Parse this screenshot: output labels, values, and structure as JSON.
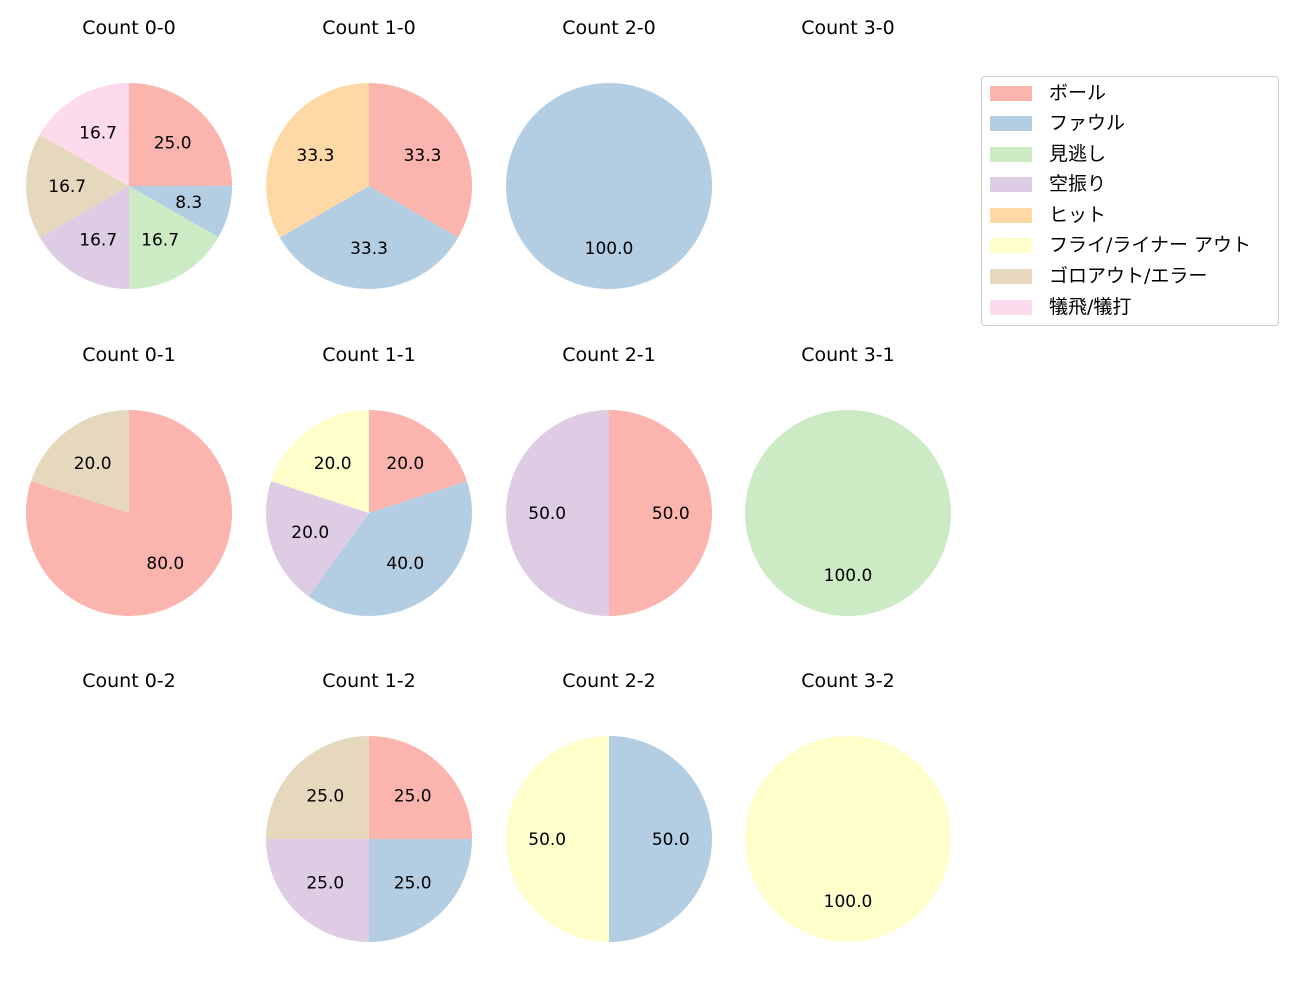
{
  "legend": {
    "items": [
      {
        "label": "ボール",
        "color": "#fbb4ae"
      },
      {
        "label": "ファウル",
        "color": "#b3cde3"
      },
      {
        "label": "見逃し",
        "color": "#ccebc5"
      },
      {
        "label": "空振り",
        "color": "#decbe4"
      },
      {
        "label": "ヒット",
        "color": "#fed9a6"
      },
      {
        "label": "フライ/ライナー アウト",
        "color": "#ffffcc"
      },
      {
        "label": "ゴロアウト/エラー",
        "color": "#e5d8bd"
      },
      {
        "label": "犠飛/犠打",
        "color": "#fddaec"
      }
    ]
  },
  "chart_data": [
    {
      "type": "pie",
      "title": "Count 0-0",
      "categories": [
        "ボール",
        "ファウル",
        "見逃し",
        "空振り",
        "ゴロアウト/エラー",
        "犠飛/犠打"
      ],
      "values": [
        25.0,
        8.3,
        16.7,
        16.7,
        16.7,
        16.7
      ]
    },
    {
      "type": "pie",
      "title": "Count 1-0",
      "categories": [
        "ボール",
        "ファウル",
        "ヒット"
      ],
      "values": [
        33.3,
        33.3,
        33.3
      ]
    },
    {
      "type": "pie",
      "title": "Count 2-0",
      "categories": [
        "ファウル"
      ],
      "values": [
        100.0
      ]
    },
    {
      "type": "pie",
      "title": "Count 3-0",
      "categories": [],
      "values": []
    },
    {
      "type": "pie",
      "title": "Count 0-1",
      "categories": [
        "ボール",
        "ゴロアウト/エラー"
      ],
      "values": [
        80.0,
        20.0
      ]
    },
    {
      "type": "pie",
      "title": "Count 1-1",
      "categories": [
        "ボール",
        "ファウル",
        "空振り",
        "フライ/ライナー アウト"
      ],
      "values": [
        20.0,
        40.0,
        20.0,
        20.0
      ]
    },
    {
      "type": "pie",
      "title": "Count 2-1",
      "categories": [
        "ボール",
        "空振り"
      ],
      "values": [
        50.0,
        50.0
      ]
    },
    {
      "type": "pie",
      "title": "Count 3-1",
      "categories": [
        "見逃し"
      ],
      "values": [
        100.0
      ]
    },
    {
      "type": "pie",
      "title": "Count 0-2",
      "categories": [],
      "values": []
    },
    {
      "type": "pie",
      "title": "Count 1-2",
      "categories": [
        "ボール",
        "ファウル",
        "空振り",
        "ゴロアウト/エラー"
      ],
      "values": [
        25.0,
        25.0,
        25.0,
        25.0
      ]
    },
    {
      "type": "pie",
      "title": "Count 2-2",
      "categories": [
        "ファウル",
        "フライ/ライナー アウト"
      ],
      "values": [
        50.0,
        50.0
      ]
    },
    {
      "type": "pie",
      "title": "Count 3-2",
      "categories": [
        "フライ/ライナー アウト"
      ],
      "values": [
        100.0
      ]
    }
  ]
}
